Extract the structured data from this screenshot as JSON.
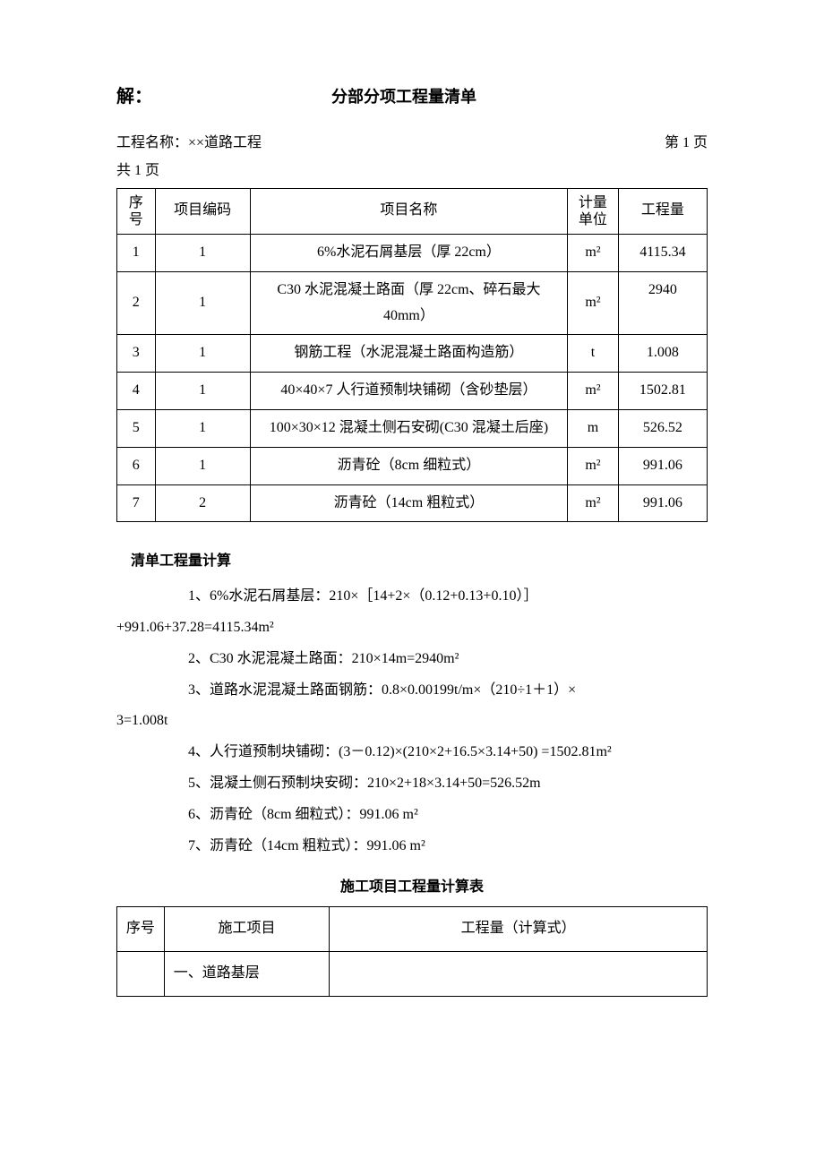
{
  "header": {
    "left": "解：",
    "center": "分部分项工程量清单"
  },
  "meta": {
    "project_label": "工程名称：××道路工程",
    "page_right": "第 1 页",
    "page_below": "共 1 页"
  },
  "table1": {
    "headers": {
      "seq": "序号",
      "code": "项目编码",
      "name": "项目名称",
      "unit": "计量单位",
      "qty": "工程量"
    },
    "rows": [
      {
        "seq": "1",
        "code": "1",
        "name": "6%水泥石屑基层（厚 22cm）",
        "unit": "m²",
        "qty": "4115.34"
      },
      {
        "seq": "2",
        "code": "1",
        "name": "C30 水泥混凝土路面（厚 22cm、碎石最大40mm）",
        "unit": "m²",
        "qty": "2940"
      },
      {
        "seq": "3",
        "code": "1",
        "name": "钢筋工程（水泥混凝土路面构造筋）",
        "unit": "t",
        "qty": "1.008"
      },
      {
        "seq": "4",
        "code": "1",
        "name": "40×40×7 人行道预制块铺砌（含砂垫层）",
        "unit": "m²",
        "qty": "1502.81"
      },
      {
        "seq": "5",
        "code": "1",
        "name": "100×30×12 混凝土侧石安砌(C30 混凝土后座)",
        "unit": "m",
        "qty": "526.52"
      },
      {
        "seq": "6",
        "code": "1",
        "name": "沥青砼（8cm 细粒式）",
        "unit": "m²",
        "qty": "991.06"
      },
      {
        "seq": "7",
        "code": "2",
        "name": "沥青砼（14cm 粗粒式）",
        "unit": "m²",
        "qty": "991.06"
      }
    ]
  },
  "calc": {
    "title": "清单工程量计算",
    "lines": [
      "1、6%水泥石屑基层：210×［14+2×（0.12+0.13+0.10）］",
      "+991.06+37.28=4115.34m²",
      "2、C30 水泥混凝土路面：210×14m=2940m²",
      "3、道路水泥混凝土路面钢筋：0.8×0.00199t/m×（210÷1＋1）×",
      "3=1.008t",
      "4、人行道预制块铺砌：(3－0.12)×(210×2+16.5×3.14+50) =1502.81m²",
      "5、混凝土侧石预制块安砌：210×2+18×3.14+50=526.52m",
      "6、沥青砼（8cm 细粒式）：991.06 m²",
      "7、沥青砼（14cm 粗粒式）：991.06 m²"
    ]
  },
  "table2": {
    "title": "施工项目工程量计算表",
    "headers": {
      "seq": "序号",
      "item": "施工项目",
      "calc": "工程量（计算式）"
    },
    "rows": [
      {
        "seq": "",
        "item": "一、道路基层",
        "calc": ""
      }
    ]
  }
}
